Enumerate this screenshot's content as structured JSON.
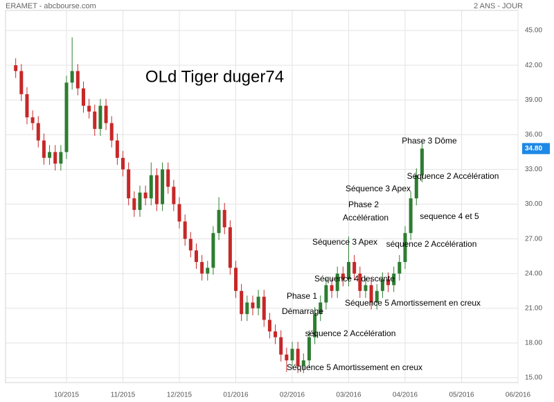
{
  "chart_data": {
    "type": "candlestick",
    "source": "ERAMET - abcbourse.com",
    "period": "2 ANS - JOUR",
    "title": "OLd Tiger duger74",
    "x": [
      9.1,
      9.2,
      9.3,
      9.4,
      9.5,
      9.6,
      9.7,
      9.8,
      9.9,
      10.0,
      10.1,
      10.2,
      10.3,
      10.4,
      10.5,
      10.6,
      10.7,
      10.8,
      10.9,
      11.0,
      11.1,
      11.2,
      11.3,
      11.4,
      11.5,
      11.6,
      11.7,
      11.8,
      11.9,
      12.0,
      12.1,
      12.2,
      12.3,
      12.4,
      12.5,
      12.6,
      12.7,
      12.8,
      12.9,
      13.0,
      13.1,
      13.2,
      13.3,
      13.4,
      13.5,
      13.6,
      13.7,
      13.8,
      13.9,
      14.0,
      14.1,
      14.2,
      14.3,
      14.4,
      14.5,
      14.6,
      14.7,
      14.8,
      14.9,
      15.0,
      15.1,
      15.2,
      15.3,
      15.4,
      15.5,
      15.6,
      15.7,
      15.8,
      15.9,
      16.0,
      16.1,
      16.2,
      16.3
    ],
    "open": [
      42.0,
      41.5,
      39.5,
      37.5,
      37.0,
      35.5,
      34.0,
      34.5,
      33.5,
      34.5,
      40.5,
      41.5,
      40.0,
      38.5,
      38.0,
      36.5,
      38.5,
      37.0,
      35.5,
      34.0,
      33.0,
      30.5,
      29.5,
      31.0,
      30.5,
      32.5,
      30.0,
      33.0,
      31.5,
      30.0,
      28.5,
      27.0,
      26.0,
      25.0,
      24.0,
      24.5,
      27.5,
      29.5,
      28.0,
      24.5,
      22.5,
      20.5,
      21.5,
      21.0,
      22.0,
      20.0,
      19.0,
      18.5,
      17.0,
      16.5,
      17.5,
      16.0,
      16.5,
      18.5,
      20.5,
      21.5,
      23.0,
      22.5,
      24.0,
      23.5,
      25.0,
      24.0,
      22.5,
      23.0,
      21.5,
      22.5,
      23.5,
      23.0,
      24.0,
      25.0,
      27.5,
      30.5,
      32.5
    ],
    "high": [
      42.6,
      42.1,
      40.1,
      38.1,
      37.6,
      36.1,
      35.1,
      35.1,
      35.1,
      41.1,
      44.4,
      42.1,
      40.6,
      39.1,
      38.6,
      39.1,
      39.1,
      37.6,
      36.1,
      34.6,
      33.6,
      31.1,
      31.6,
      31.6,
      33.6,
      33.1,
      33.6,
      33.6,
      32.1,
      30.6,
      29.1,
      27.6,
      26.6,
      25.6,
      25.1,
      28.1,
      30.6,
      30.1,
      28.6,
      25.1,
      23.1,
      22.1,
      22.1,
      22.6,
      22.6,
      20.6,
      19.6,
      19.1,
      17.6,
      18.1,
      18.1,
      17.1,
      19.1,
      21.1,
      22.1,
      23.6,
      23.6,
      24.6,
      24.6,
      27.2,
      25.6,
      24.6,
      23.6,
      23.6,
      23.1,
      24.1,
      24.1,
      24.6,
      25.6,
      28.1,
      31.1,
      33.1,
      35.4
    ],
    "low": [
      40.9,
      38.9,
      36.9,
      36.4,
      34.9,
      33.4,
      33.4,
      32.9,
      32.9,
      33.9,
      39.9,
      39.4,
      37.9,
      37.4,
      35.9,
      35.9,
      36.4,
      34.9,
      33.4,
      32.4,
      29.9,
      28.9,
      28.9,
      29.9,
      29.9,
      29.4,
      29.4,
      30.9,
      29.4,
      27.9,
      26.4,
      25.4,
      24.4,
      23.4,
      23.4,
      23.9,
      26.9,
      27.4,
      23.9,
      21.9,
      19.9,
      19.9,
      20.4,
      20.4,
      19.4,
      18.4,
      17.9,
      16.4,
      15.5,
      15.9,
      15.4,
      15.4,
      15.9,
      17.9,
      19.9,
      20.9,
      21.9,
      21.9,
      22.9,
      22.9,
      23.4,
      21.9,
      21.9,
      20.9,
      20.9,
      21.9,
      22.4,
      22.4,
      23.4,
      24.4,
      26.9,
      29.9,
      31.9
    ],
    "close": [
      41.5,
      39.5,
      37.5,
      37.0,
      35.5,
      34.0,
      34.5,
      33.5,
      34.5,
      40.5,
      41.5,
      40.0,
      38.5,
      38.0,
      36.5,
      38.5,
      37.0,
      35.5,
      34.0,
      33.0,
      30.5,
      29.5,
      31.0,
      30.5,
      32.5,
      30.0,
      33.0,
      31.5,
      30.0,
      28.5,
      27.0,
      26.0,
      25.0,
      24.0,
      24.5,
      27.5,
      29.5,
      28.0,
      24.5,
      22.5,
      20.5,
      21.5,
      21.0,
      22.0,
      20.0,
      19.0,
      18.5,
      17.0,
      16.5,
      17.5,
      16.0,
      16.5,
      18.5,
      20.5,
      21.5,
      23.0,
      22.5,
      24.0,
      23.5,
      25.0,
      24.0,
      22.5,
      23.0,
      21.5,
      22.5,
      23.5,
      23.0,
      24.0,
      25.0,
      27.5,
      30.5,
      32.5,
      34.8
    ],
    "up_color": "#2e7d32",
    "down_color": "#c62828",
    "last_price": {
      "value": 34.8,
      "label": "34.80"
    },
    "xlim": [
      8.92,
      18.0
    ],
    "xticks": [
      {
        "value": 10,
        "label": "10/2015"
      },
      {
        "value": 11,
        "label": "11/2015"
      },
      {
        "value": 12,
        "label": "12/2015"
      },
      {
        "value": 13,
        "label": "01/2016"
      },
      {
        "value": 14,
        "label": "02/2016"
      },
      {
        "value": 15,
        "label": "03/2016"
      },
      {
        "value": 16,
        "label": "04/2016"
      },
      {
        "value": 17,
        "label": "05/2016"
      },
      {
        "value": 18,
        "label": "06/2016"
      }
    ],
    "ylim": [
      14.58,
      46.74
    ],
    "yticks": [
      {
        "value": 15,
        "label": "15.00"
      },
      {
        "value": 18,
        "label": "18.00"
      },
      {
        "value": 21,
        "label": "21.00"
      },
      {
        "value": 24,
        "label": "24.00"
      },
      {
        "value": 27,
        "label": "27.00"
      },
      {
        "value": 30,
        "label": "30.00"
      },
      {
        "value": 33,
        "label": "33.00"
      },
      {
        "value": 36,
        "label": "36.00"
      },
      {
        "value": 39,
        "label": "39.00"
      },
      {
        "value": 42,
        "label": "42.00"
      },
      {
        "value": 45,
        "label": "45.00"
      }
    ],
    "grid": true,
    "annotations": [
      "Phase 3 Dôme",
      "Séquence 2 Accélération",
      "Séquence 3 Apex",
      "Phase 2",
      "Accélération",
      "sequence 4 et 5",
      "Séquence 3 Apex",
      "séquence 2 Accélération",
      "Séquence 4 descente",
      "Phase 1",
      "Démarrage",
      "Séquence 5 Amortissement en creux",
      "séquence 2 Accélération",
      "Séquence 5 Amortissement en creux"
    ]
  }
}
